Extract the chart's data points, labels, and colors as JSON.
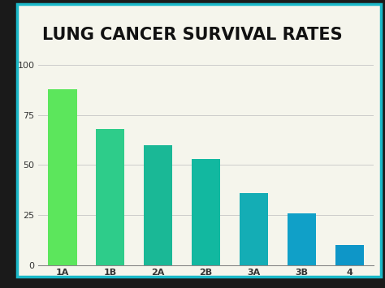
{
  "title": "LUNG CANCER SURVIVAL RATES",
  "categories": [
    "1A",
    "1B",
    "2A",
    "2B",
    "3A",
    "3B",
    "4"
  ],
  "values": [
    88,
    68,
    60,
    53,
    36,
    26,
    10
  ],
  "bar_colors": [
    "#5ce65c",
    "#2ecc8a",
    "#1ab896",
    "#12b8a0",
    "#14adb5",
    "#10a0c8",
    "#0e96c8"
  ],
  "background_color": "#f5f5ec",
  "outer_bg_color": "#1a1a1a",
  "border_color": "#1ab8c8",
  "title_fontsize": 15,
  "tick_label_fontsize": 8,
  "yticks": [
    0,
    25,
    50,
    75,
    100
  ],
  "ylim": [
    0,
    108
  ],
  "grid_color": "#cccccc",
  "title_font_weight": "bold"
}
